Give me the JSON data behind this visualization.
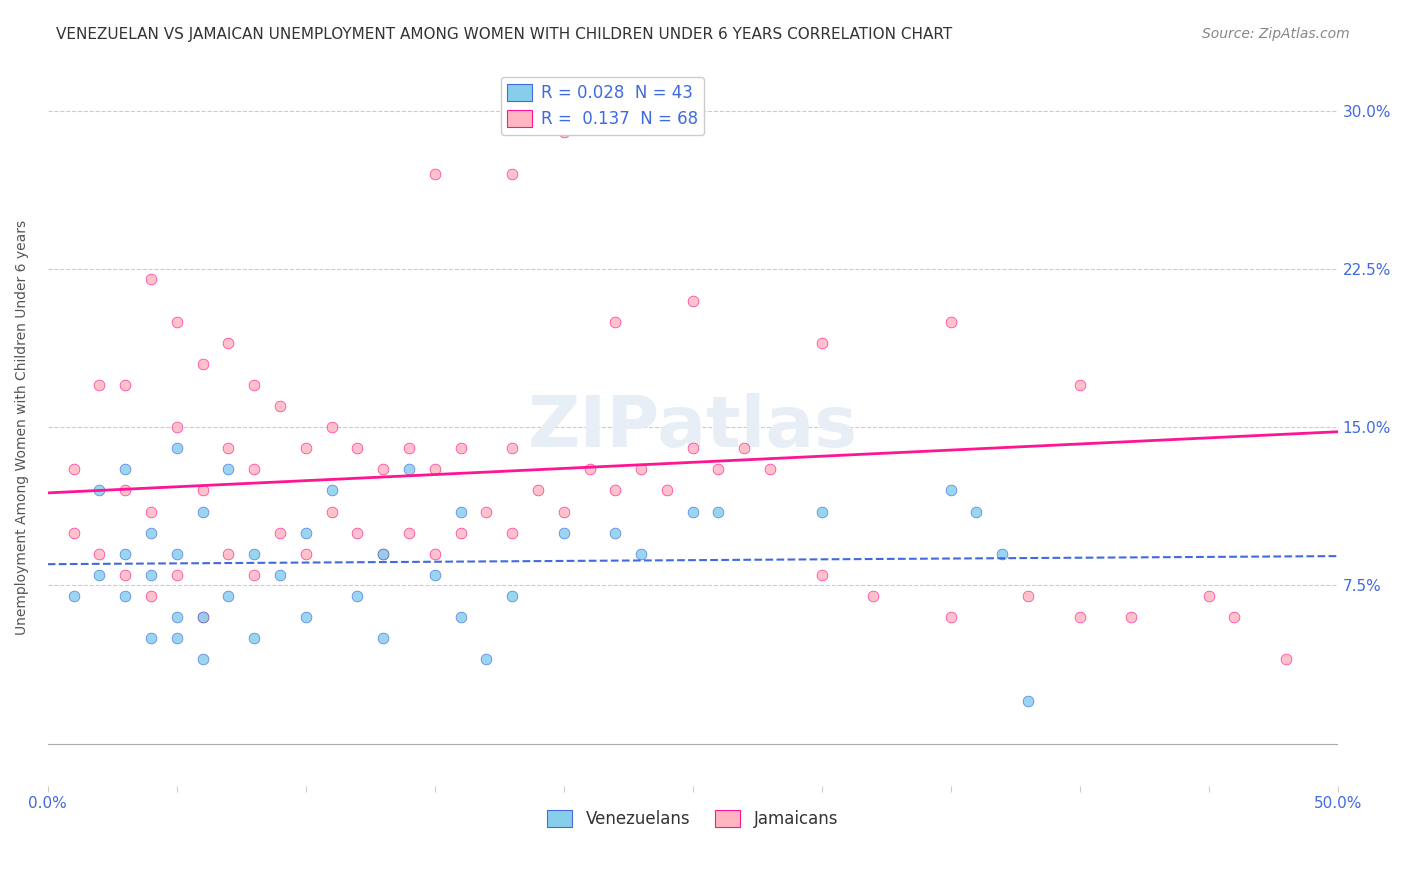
{
  "title": "VENEZUELAN VS JAMAICAN UNEMPLOYMENT AMONG WOMEN WITH CHILDREN UNDER 6 YEARS CORRELATION CHART",
  "source": "Source: ZipAtlas.com",
  "ylabel": "Unemployment Among Women with Children Under 6 years",
  "xlabel": "",
  "legend_venezuelan": "Venezuelans",
  "legend_jamaican": "Jamaicans",
  "R_venezuelan": 0.028,
  "N_venezuelan": 43,
  "R_jamaican": 0.137,
  "N_jamaican": 68,
  "xlim": [
    0.0,
    0.5
  ],
  "ylim": [
    -0.02,
    0.32
  ],
  "xticks": [
    0.0,
    0.05,
    0.1,
    0.15,
    0.2,
    0.25,
    0.3,
    0.35,
    0.4,
    0.45,
    0.5
  ],
  "yticks": [
    0.0,
    0.075,
    0.15,
    0.225,
    0.3
  ],
  "ytick_labels": [
    "",
    "7.5%",
    "15.0%",
    "22.5%",
    "30.0%"
  ],
  "xtick_labels": [
    "0.0%",
    "",
    "",
    "",
    "",
    "",
    "",
    "",
    "",
    "",
    "50.0%"
  ],
  "color_venezuelan": "#87CEEB",
  "color_jamaican": "#FFB6C1",
  "trendline_venezuelan": "#4169E1",
  "trendline_jamaican": "#FF1493",
  "watermark": "ZIPatlas",
  "background_color": "#FFFFFF",
  "venezuelan_x": [
    0.01,
    0.02,
    0.02,
    0.03,
    0.03,
    0.03,
    0.04,
    0.04,
    0.04,
    0.05,
    0.05,
    0.05,
    0.05,
    0.06,
    0.06,
    0.06,
    0.07,
    0.07,
    0.08,
    0.08,
    0.09,
    0.1,
    0.1,
    0.11,
    0.12,
    0.13,
    0.13,
    0.14,
    0.15,
    0.16,
    0.16,
    0.17,
    0.18,
    0.2,
    0.22,
    0.23,
    0.25,
    0.26,
    0.3,
    0.35,
    0.36,
    0.37,
    0.38
  ],
  "venezuelan_y": [
    0.07,
    0.08,
    0.12,
    0.07,
    0.09,
    0.13,
    0.05,
    0.08,
    0.1,
    0.05,
    0.06,
    0.09,
    0.14,
    0.04,
    0.06,
    0.11,
    0.07,
    0.13,
    0.05,
    0.09,
    0.08,
    0.06,
    0.1,
    0.12,
    0.07,
    0.05,
    0.09,
    0.13,
    0.08,
    0.06,
    0.11,
    0.04,
    0.07,
    0.1,
    0.1,
    0.09,
    0.11,
    0.11,
    0.11,
    0.12,
    0.11,
    0.09,
    0.02
  ],
  "jamaican_x": [
    0.01,
    0.01,
    0.02,
    0.02,
    0.03,
    0.03,
    0.03,
    0.04,
    0.04,
    0.04,
    0.05,
    0.05,
    0.05,
    0.06,
    0.06,
    0.06,
    0.07,
    0.07,
    0.07,
    0.08,
    0.08,
    0.08,
    0.09,
    0.09,
    0.1,
    0.1,
    0.11,
    0.11,
    0.12,
    0.12,
    0.13,
    0.13,
    0.14,
    0.14,
    0.15,
    0.15,
    0.16,
    0.16,
    0.17,
    0.18,
    0.18,
    0.19,
    0.2,
    0.21,
    0.22,
    0.23,
    0.24,
    0.25,
    0.26,
    0.27,
    0.28,
    0.3,
    0.32,
    0.35,
    0.38,
    0.4,
    0.42,
    0.45,
    0.46,
    0.48,
    0.15,
    0.18,
    0.2,
    0.22,
    0.25,
    0.3,
    0.35,
    0.4
  ],
  "jamaican_y": [
    0.1,
    0.13,
    0.09,
    0.17,
    0.08,
    0.12,
    0.17,
    0.07,
    0.11,
    0.22,
    0.08,
    0.15,
    0.2,
    0.06,
    0.12,
    0.18,
    0.09,
    0.14,
    0.19,
    0.08,
    0.13,
    0.17,
    0.1,
    0.16,
    0.09,
    0.14,
    0.11,
    0.15,
    0.1,
    0.14,
    0.09,
    0.13,
    0.1,
    0.14,
    0.09,
    0.13,
    0.1,
    0.14,
    0.11,
    0.1,
    0.14,
    0.12,
    0.11,
    0.13,
    0.12,
    0.13,
    0.12,
    0.14,
    0.13,
    0.14,
    0.13,
    0.08,
    0.07,
    0.06,
    0.07,
    0.06,
    0.06,
    0.07,
    0.06,
    0.04,
    0.27,
    0.27,
    0.29,
    0.2,
    0.21,
    0.19,
    0.2,
    0.17
  ],
  "title_fontsize": 11,
  "axis_label_fontsize": 10,
  "tick_fontsize": 11,
  "legend_fontsize": 12,
  "source_fontsize": 10
}
